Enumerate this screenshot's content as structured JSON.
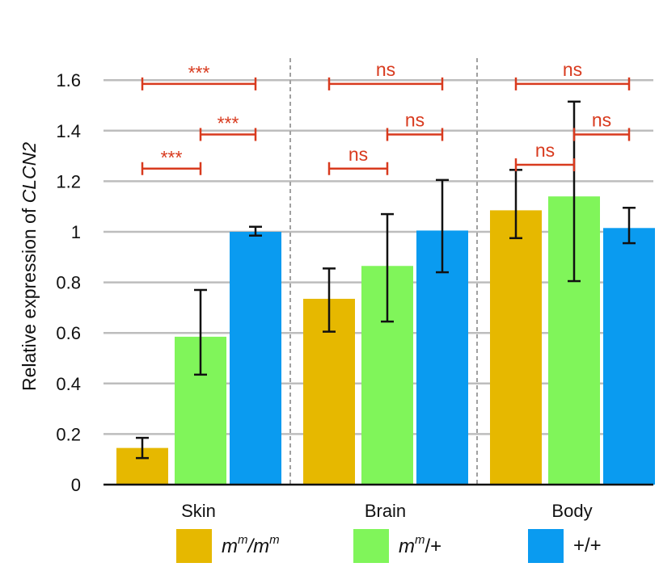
{
  "chart_data": {
    "type": "bar",
    "ylabel_prefix": "Relative expression of ",
    "ylabel_gene": "CLCN2",
    "ylim": [
      0,
      1.6
    ],
    "yticks": [
      "0",
      "0.2",
      "0.4",
      "0.6",
      "0.8",
      "1",
      "1.2",
      "1.4",
      "1.6"
    ],
    "categories": [
      "Skin",
      "Brain",
      "Body"
    ],
    "series": [
      {
        "name": "mm/mm",
        "color": "#E6B800",
        "values": [
          0.145,
          0.735,
          1.085
        ],
        "err_low": [
          0.105,
          0.605,
          0.975
        ],
        "err_high": [
          0.185,
          0.855,
          1.245
        ]
      },
      {
        "name": "mm/+",
        "color": "#80F55A",
        "values": [
          0.585,
          0.865,
          1.14
        ],
        "err_low": [
          0.435,
          0.645,
          0.805
        ],
        "err_high": [
          0.77,
          1.07,
          1.515
        ]
      },
      {
        "name": "+/+",
        "color": "#0A9BF0",
        "values": [
          1.0,
          1.005,
          1.015
        ],
        "err_low": [
          0.985,
          0.84,
          0.955
        ],
        "err_high": [
          1.02,
          1.205,
          1.095
        ]
      }
    ],
    "significance": [
      {
        "group": 0,
        "from": 0,
        "to": 1,
        "level": 1.25,
        "label": "***",
        "color": "#D83A1E"
      },
      {
        "group": 0,
        "from": 1,
        "to": 2,
        "level": 1.385,
        "label": "***",
        "color": "#D83A1E"
      },
      {
        "group": 0,
        "from": 0,
        "to": 2,
        "level": 1.585,
        "label": "***",
        "color": "#D83A1E"
      },
      {
        "group": 1,
        "from": 0,
        "to": 1,
        "level": 1.25,
        "label": "ns",
        "color": "#D83A1E"
      },
      {
        "group": 1,
        "from": 1,
        "to": 2,
        "level": 1.385,
        "label": "ns",
        "color": "#D83A1E"
      },
      {
        "group": 1,
        "from": 0,
        "to": 2,
        "level": 1.585,
        "label": "ns",
        "color": "#D83A1E"
      },
      {
        "group": 2,
        "from": 0,
        "to": 1,
        "level": 1.265,
        "label": "ns",
        "color": "#D83A1E"
      },
      {
        "group": 2,
        "from": 1,
        "to": 2,
        "level": 1.385,
        "label": "ns",
        "color": "#D83A1E"
      },
      {
        "group": 2,
        "from": 0,
        "to": 2,
        "level": 1.585,
        "label": "ns",
        "color": "#D83A1E"
      }
    ],
    "legend": [
      {
        "base1": "m",
        "sup1": "m",
        "sep": "/",
        "base2": "m",
        "sup2": "m",
        "color": "#E6B800"
      },
      {
        "base1": "m",
        "sup1": "m",
        "sep": "/+",
        "color": "#80F55A"
      },
      {
        "text": "+/+",
        "color": "#0A9BF0"
      }
    ]
  }
}
